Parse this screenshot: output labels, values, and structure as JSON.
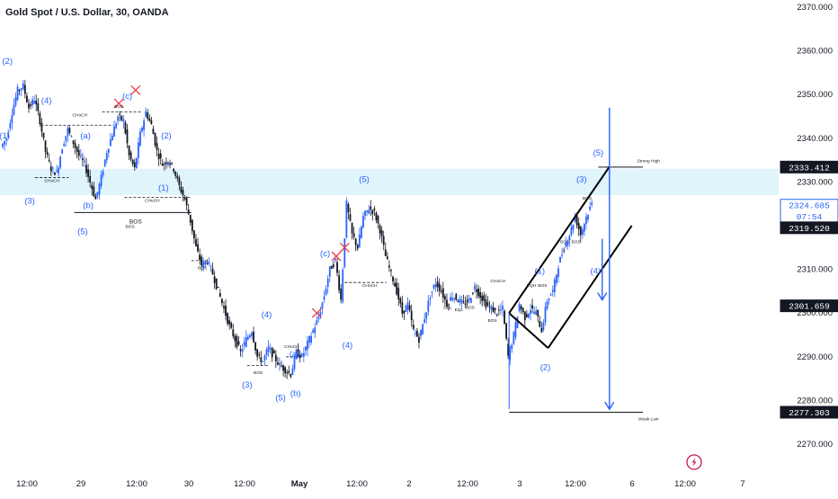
{
  "title": "Gold Spot / U.S. Dollar, 30, OANDA",
  "colors": {
    "candle": "#131722",
    "bull": "#2962ff",
    "wave_label": "#2962ff",
    "zone": "#dff4fb",
    "current_price_tag": "#2962ff",
    "cross": "#f23645",
    "bolt": "#c2185b"
  },
  "chart_data": {
    "type": "candlestick",
    "symbol": "XAUUSD",
    "timeframe": "30",
    "ylim": [
      2265,
      2372
    ],
    "y_ticks": [
      "2370.000",
      "2360.000",
      "2350.000",
      "2340.000",
      "2330.000",
      "2320.000",
      "2310.000",
      "2300.000",
      "2290.000",
      "2280.000",
      "2270.000"
    ],
    "y_tick_values": [
      2370,
      2360,
      2350,
      2340,
      2330,
      2320,
      2310,
      2300,
      2290,
      2280,
      2270
    ],
    "x_ticks": [
      "12:00",
      "29",
      "12:00",
      "30",
      "12:00",
      "May",
      "12:00",
      "2",
      "12:00",
      "3",
      "12:00",
      "6",
      "12:00",
      "7"
    ],
    "x_tick_bold": [
      false,
      false,
      false,
      false,
      false,
      true,
      false,
      false,
      false,
      false,
      false,
      false,
      false,
      false
    ],
    "price_tags": [
      {
        "value": 2333.412,
        "label": "2333.412",
        "style": "dark"
      },
      {
        "value": 2324.685,
        "label": "2324.685",
        "sublabel": "07:54",
        "style": "current"
      },
      {
        "value": 2319.52,
        "label": "2319.520",
        "style": "dark"
      },
      {
        "value": 2301.659,
        "label": "2301.659",
        "style": "dark"
      },
      {
        "value": 2277.303,
        "label": "2277.303",
        "style": "dark"
      }
    ],
    "zone": [
      2327,
      2333
    ],
    "price_path": [
      [
        0,
        2338
      ],
      [
        1,
        2340
      ],
      [
        2,
        2346
      ],
      [
        3,
        2351
      ],
      [
        4,
        2352
      ],
      [
        5,
        2347
      ],
      [
        6,
        2349
      ],
      [
        7,
        2344
      ],
      [
        8,
        2337
      ],
      [
        9,
        2333
      ],
      [
        10,
        2332
      ],
      [
        11,
        2338
      ],
      [
        12,
        2342
      ],
      [
        13,
        2339
      ],
      [
        14,
        2336
      ],
      [
        15,
        2334
      ],
      [
        16,
        2330
      ],
      [
        17,
        2326
      ],
      [
        18,
        2331
      ],
      [
        19,
        2337
      ],
      [
        20,
        2341
      ],
      [
        21,
        2345
      ],
      [
        22,
        2344
      ],
      [
        23,
        2336
      ],
      [
        24,
        2333
      ],
      [
        25,
        2341
      ],
      [
        26,
        2346
      ],
      [
        27,
        2343
      ],
      [
        28,
        2337
      ],
      [
        29,
        2334
      ],
      [
        30,
        2335
      ],
      [
        31,
        2333
      ],
      [
        32,
        2329
      ],
      [
        33,
        2326
      ],
      [
        34,
        2321
      ],
      [
        35,
        2315
      ],
      [
        36,
        2311
      ],
      [
        37,
        2312
      ],
      [
        38,
        2309
      ],
      [
        39,
        2305
      ],
      [
        40,
        2301
      ],
      [
        41,
        2297
      ],
      [
        42,
        2294
      ],
      [
        43,
        2291
      ],
      [
        44,
        2294
      ],
      [
        45,
        2296
      ],
      [
        46,
        2290
      ],
      [
        47,
        2289
      ],
      [
        48,
        2292
      ],
      [
        49,
        2290
      ],
      [
        50,
        2288
      ],
      [
        51,
        2287
      ],
      [
        52,
        2286
      ],
      [
        53,
        2291
      ],
      [
        54,
        2290
      ],
      [
        55,
        2293
      ],
      [
        56,
        2296
      ],
      [
        57,
        2299
      ],
      [
        58,
        2304
      ],
      [
        59,
        2310
      ],
      [
        60,
        2312
      ],
      [
        61,
        2303
      ],
      [
        62,
        2325
      ],
      [
        63,
        2318
      ],
      [
        64,
        2315
      ],
      [
        65,
        2322
      ],
      [
        66,
        2324
      ],
      [
        67,
        2323
      ],
      [
        68,
        2319
      ],
      [
        69,
        2313
      ],
      [
        70,
        2309
      ],
      [
        71,
        2305
      ],
      [
        72,
        2300
      ],
      [
        73,
        2302
      ],
      [
        74,
        2296
      ],
      [
        75,
        2294
      ],
      [
        76,
        2299
      ],
      [
        77,
        2304
      ],
      [
        78,
        2307
      ],
      [
        79,
        2305
      ],
      [
        80,
        2302
      ],
      [
        81,
        2304
      ],
      [
        82,
        2303
      ],
      [
        83,
        2302
      ],
      [
        84,
        2303
      ],
      [
        85,
        2306
      ],
      [
        86,
        2304
      ],
      [
        87,
        2302
      ],
      [
        88,
        2301
      ],
      [
        89,
        2300
      ],
      [
        90,
        2301
      ],
      [
        91,
        2290
      ],
      [
        92,
        2295
      ],
      [
        93,
        2302
      ],
      [
        94,
        2299
      ],
      [
        95,
        2301
      ],
      [
        96,
        2300
      ],
      [
        97,
        2296
      ],
      [
        98,
        2303
      ],
      [
        99,
        2305
      ],
      [
        100,
        2311
      ],
      [
        101,
        2315
      ],
      [
        102,
        2318
      ],
      [
        103,
        2322
      ],
      [
        104,
        2318
      ],
      [
        105,
        2322
      ],
      [
        106,
        2325
      ]
    ],
    "waves": [
      {
        "text": "(2)",
        "x": 1,
        "y": 2357
      },
      {
        "text": "(1)",
        "x": 0.5,
        "y": 2340
      },
      {
        "text": "(3)",
        "x": 5,
        "y": 2325
      },
      {
        "text": "(4)",
        "x": 8,
        "y": 2348
      },
      {
        "text": "(a)",
        "x": 15,
        "y": 2340
      },
      {
        "text": "(b)",
        "x": 15.5,
        "y": 2324
      },
      {
        "text": "(5)",
        "x": 14.5,
        "y": 2318
      },
      {
        "text": "(c)",
        "x": 22.5,
        "y": 2349
      },
      {
        "text": "(2)",
        "x": 29.5,
        "y": 2340
      },
      {
        "text": "(1)",
        "x": 29,
        "y": 2328
      },
      {
        "text": "(3)",
        "x": 44,
        "y": 2283
      },
      {
        "text": "(4)",
        "x": 47.5,
        "y": 2299
      },
      {
        "text": "(5)",
        "x": 50,
        "y": 2280
      },
      {
        "text": "(a)",
        "x": 52.5,
        "y": 2290
      },
      {
        "text": "(b)",
        "x": 52.7,
        "y": 2281
      },
      {
        "text": "(4)",
        "x": 62,
        "y": 2292
      },
      {
        "text": "(c)",
        "x": 58,
        "y": 2313
      },
      {
        "text": "(5)",
        "x": 65,
        "y": 2330
      },
      {
        "text": "(1)",
        "x": 96.5,
        "y": 2309
      },
      {
        "text": "(2)",
        "x": 97.5,
        "y": 2287
      },
      {
        "text": "(3)",
        "x": 104,
        "y": 2330
      },
      {
        "text": "(4)",
        "x": 106.5,
        "y": 2309
      },
      {
        "text": "(5)",
        "x": 107,
        "y": 2336
      }
    ],
    "crosses": [
      {
        "x": 21,
        "y": 2348
      },
      {
        "x": 24,
        "y": 2351
      },
      {
        "x": 56.5,
        "y": 2300
      },
      {
        "x": 60,
        "y": 2313
      },
      {
        "x": 61.5,
        "y": 2315
      }
    ],
    "structure_lines": [
      {
        "x1": 7,
        "x2": 20,
        "y": 2343,
        "dash": true
      },
      {
        "x1": 18,
        "x2": 25,
        "y": 2346,
        "dash": true
      },
      {
        "x1": 6,
        "x2": 12,
        "y": 2331,
        "dash": true
      },
      {
        "x1": 22,
        "x2": 34,
        "y": 2326.5,
        "dash": true
      },
      {
        "x1": 13,
        "x2": 34,
        "y": 2323,
        "dash": false
      },
      {
        "x1": 34,
        "x2": 37,
        "y": 2312,
        "dash": true
      },
      {
        "x1": 44,
        "x2": 48,
        "y": 2288,
        "dash": true
      },
      {
        "x1": 51,
        "x2": 54,
        "y": 2290,
        "dash": true
      },
      {
        "x1": 61.5,
        "x2": 69,
        "y": 2307,
        "dash": true
      }
    ],
    "small_labels": [
      {
        "text": "CHoCH",
        "x": 14,
        "y": 2345
      },
      {
        "text": "BOS",
        "x": 21,
        "y": 2347
      },
      {
        "text": "CHoCH",
        "x": 9,
        "y": 2330
      },
      {
        "text": "CHoCH",
        "x": 27,
        "y": 2325.5
      },
      {
        "text": "BOS",
        "x": 23,
        "y": 2319.5
      },
      {
        "text": "BOS",
        "x": 36,
        "y": 2310
      },
      {
        "text": "BOS",
        "x": 46,
        "y": 2286
      },
      {
        "text": "CHoCH",
        "x": 52,
        "y": 2292
      },
      {
        "text": "CHoCH",
        "x": 66,
        "y": 2306
      },
      {
        "text": "EQL",
        "x": 80,
        "y": 2301
      },
      {
        "text": "EQL",
        "x": 82,
        "y": 2300.5
      },
      {
        "text": "BOS",
        "x": 84,
        "y": 2301
      },
      {
        "text": "BOS",
        "x": 88,
        "y": 2298
      },
      {
        "text": "CHoCH",
        "x": 89,
        "y": 2307
      },
      {
        "text": "EQH",
        "x": 95,
        "y": 2306
      },
      {
        "text": "BOS",
        "x": 97,
        "y": 2306
      },
      {
        "text": "BOS",
        "x": 101,
        "y": 2316
      },
      {
        "text": "BOS",
        "x": 103,
        "y": 2316
      },
      {
        "text": "BOS",
        "x": 105,
        "y": 2326
      },
      {
        "text": "Strong High",
        "x": 116,
        "y": 2334.5
      },
      {
        "text": "Weak Low",
        "x": 116,
        "y": 2275.5
      }
    ],
    "bos_big": {
      "text": "BOS",
      "x": 24,
      "y": 2320.5
    },
    "channel": {
      "upper": [
        [
          91,
          2300
        ],
        [
          109,
          2333.5
        ]
      ],
      "lower": [
        [
          98,
          2292
        ],
        [
          113,
          2320
        ]
      ],
      "anchor_vertical": {
        "x": 91,
        "y1": 2278,
        "y2": 2300
      }
    },
    "strong_high": {
      "x1": 107,
      "x2": 115,
      "y": 2333.4
    },
    "weak_low": {
      "x1": 91,
      "x2": 115,
      "y": 2277.3
    },
    "projections": [
      {
        "x": 109,
        "y1": 2347,
        "y2": 2278
      },
      {
        "x": 107.7,
        "y1": 2317,
        "y2": 2303
      }
    ]
  }
}
